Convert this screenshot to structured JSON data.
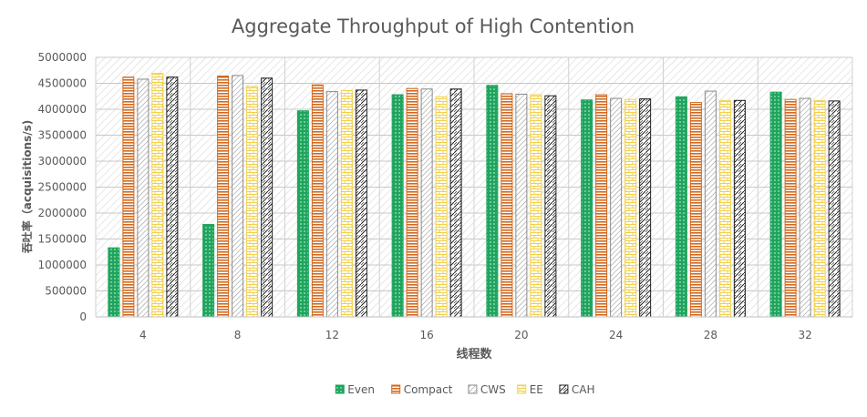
{
  "chart_data": {
    "type": "bar",
    "title": "Aggregate Throughput of High Contention",
    "xlabel": "线程数",
    "ylabel": "吞吐率（acquisitions/s)",
    "categories": [
      "4",
      "8",
      "12",
      "16",
      "20",
      "24",
      "28",
      "32"
    ],
    "ylim": [
      0,
      5000000
    ],
    "yticks": [
      "0",
      "500000",
      "1000000",
      "1500000",
      "2000000",
      "2500000",
      "3000000",
      "3500000",
      "4000000",
      "4500000",
      "5000000"
    ],
    "grid": true,
    "legend_position": "bottom",
    "series": [
      {
        "name": "Even",
        "color": "#1fa45e",
        "pattern": "dots-green",
        "values": [
          1330000,
          1780000,
          3970000,
          4280000,
          4460000,
          4180000,
          4240000,
          4330000
        ]
      },
      {
        "name": "Compact",
        "color": "#d2691e",
        "pattern": "hstripes-orange",
        "values": [
          4620000,
          4640000,
          4470000,
          4400000,
          4300000,
          4280000,
          4130000,
          4190000
        ]
      },
      {
        "name": "CWS",
        "color": "#8a8a8a",
        "pattern": "diag-gray",
        "values": [
          4580000,
          4650000,
          4340000,
          4390000,
          4290000,
          4210000,
          4350000,
          4210000
        ]
      },
      {
        "name": "EE",
        "color": "#f2d04a",
        "pattern": "brick-yellow",
        "values": [
          4690000,
          4440000,
          4360000,
          4240000,
          4280000,
          4190000,
          4170000,
          4170000
        ]
      },
      {
        "name": "CAH",
        "color": "#222222",
        "pattern": "zigzag-black",
        "values": [
          4620000,
          4600000,
          4370000,
          4390000,
          4260000,
          4200000,
          4170000,
          4160000
        ]
      }
    ]
  }
}
